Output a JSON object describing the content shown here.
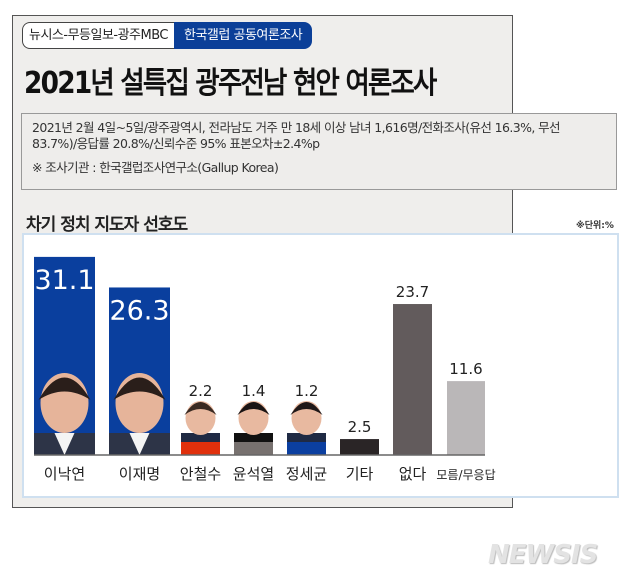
{
  "header": {
    "partners": "뉴시스-무등일보-광주MBC",
    "survey_tag": "한국갤럽 공동여론조사",
    "title": "2021년 설특집 광주전남 현안 여론조사"
  },
  "info": {
    "method": "2021년 2월 4일~5일/광주광역시, 전라남도 거주 만 18세 이상 남녀 1,616명/전화조사(유선 16.3%, 무선 83.7%)/응답률 20.8%/신뢰수준 95% 표본오차±2.4%p",
    "agency": "※ 조사기관 : 한국갤럽조사연구소(Gallup Korea)"
  },
  "watermark": "NEWSIS",
  "chart_data": {
    "type": "bar",
    "title": "차기 정치 지도자 선호도",
    "unit_note": "※단위:%",
    "categories": [
      "이낙연",
      "이재명",
      "안철수",
      "윤석열",
      "정세균",
      "기타",
      "없다",
      "모름/무응답"
    ],
    "values": [
      31.1,
      26.3,
      2.2,
      1.4,
      1.2,
      2.5,
      23.7,
      11.6
    ],
    "value_labels": [
      "31.1",
      "26.3",
      "2.2",
      "1.4",
      "1.2",
      "2.5",
      "23.7",
      "11.6"
    ],
    "colors": [
      "#0a3f9e",
      "#0a3f9e",
      "#e0300c",
      "#77716f",
      "#0b3fa0",
      "#2a2526",
      "#625b5c",
      "#bab7b8"
    ],
    "has_photo": [
      true,
      true,
      true,
      true,
      true,
      false,
      false,
      false
    ],
    "ylim": [
      0,
      32
    ],
    "grid": false
  }
}
